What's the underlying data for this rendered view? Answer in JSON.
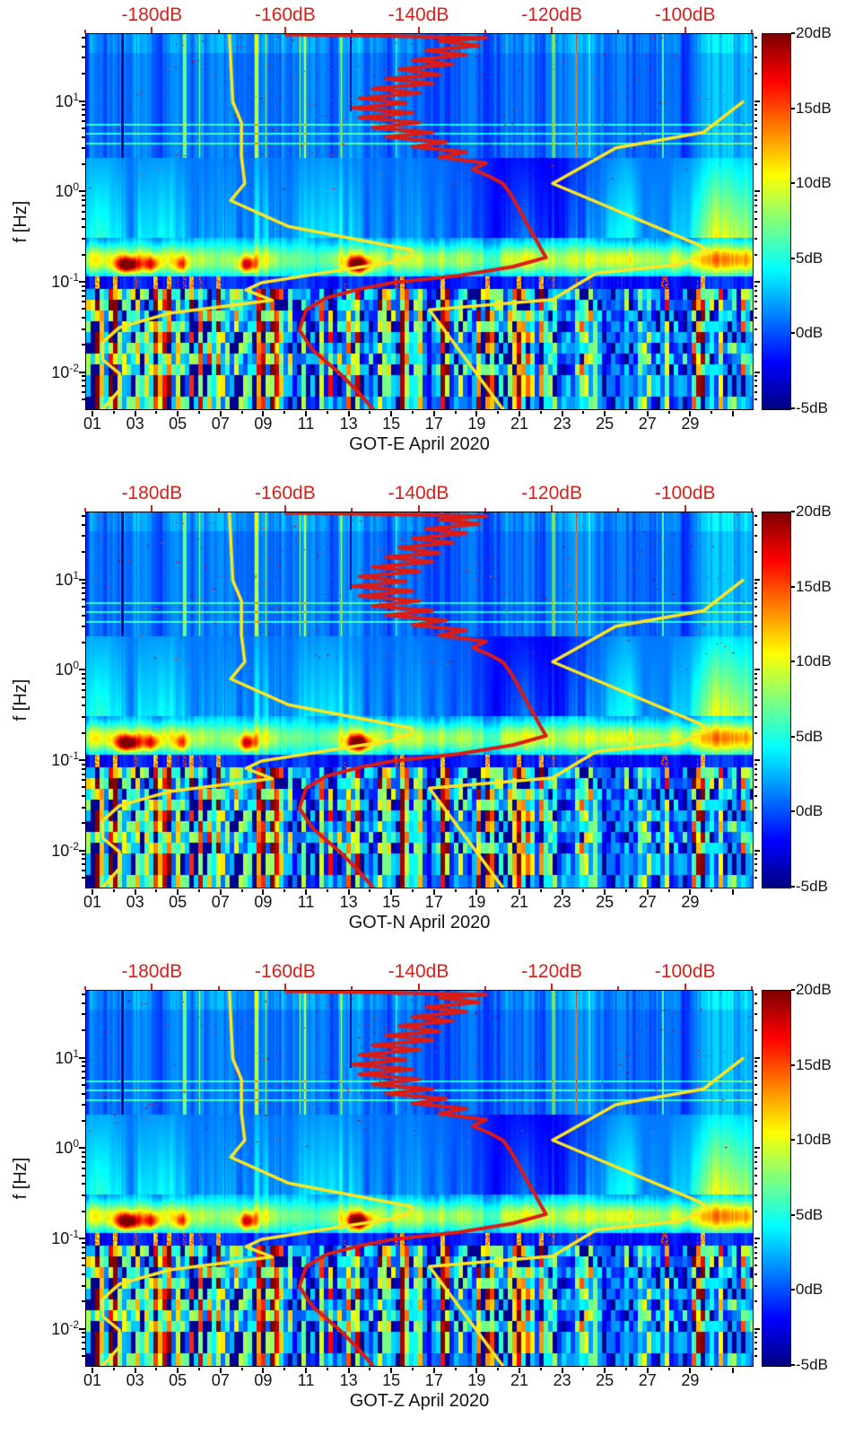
{
  "figure": {
    "background": "#ffffff",
    "accent_red": "#d8201a",
    "curve_yellow": "#ffe51f",
    "curve_red": "#dc1c14",
    "ylabel": "f [Hz]",
    "noise_seed": 7
  },
  "axes": {
    "x_ticks": {
      "labels": [
        "01",
        "03",
        "05",
        "07",
        "09",
        "11",
        "13",
        "15",
        "17",
        "19",
        "21",
        "23",
        "25",
        "27",
        "29"
      ],
      "values": [
        1,
        3,
        5,
        7,
        9,
        11,
        13,
        15,
        17,
        19,
        21,
        23,
        25,
        27,
        29
      ]
    },
    "y_ticks": [
      {
        "base": "10",
        "exp": "1",
        "value_hz": 10
      },
      {
        "base": "10",
        "exp": "0",
        "value_hz": 1
      },
      {
        "base": "10",
        "exp": "-1",
        "value_hz": 0.1
      },
      {
        "base": "10",
        "exp": "-2",
        "value_hz": 0.01
      }
    ],
    "top_ticks": {
      "labels": [
        "-180dB",
        "-160dB",
        "-140dB",
        "-120dB",
        "-100dB"
      ],
      "values": [
        -180,
        -160,
        -140,
        -120,
        -100
      ],
      "range_db": [
        -190,
        -90
      ]
    },
    "colorbar_ticks": {
      "labels": [
        "20dB",
        "15dB",
        "10dB",
        "5dB",
        "0dB",
        "-5dB"
      ],
      "values": [
        20,
        15,
        10,
        5,
        0,
        -5
      ]
    }
  },
  "chart_data": {
    "type": "heatmap",
    "description": "Three stacked spectrogram panels (E, N, Z components of station GOT) for April 2020. Color = PSD deviation in dB (jet colormap, -5 to 20 dB, colorbar at right). Bottom/black axis = day of month, left axis = frequency in Hz (log scale 0.004-56 Hz). Top red axis = absolute PSD level in dB (-190 to -90). Yellow curves = Peterson NLNM and NHNM reference noise models; red curve = station median PSD, both plotted against the top dB axis.",
    "panels": [
      {
        "component": "E",
        "title": "GOT-E April 2020"
      },
      {
        "component": "N",
        "title": "GOT-N April 2020"
      },
      {
        "component": "Z",
        "title": "GOT-Z April 2020"
      }
    ],
    "x_axis": {
      "unit": "day of April 2020",
      "range": [
        1,
        31.9
      ],
      "ticks": [
        1,
        3,
        5,
        7,
        9,
        11,
        13,
        15,
        17,
        19,
        21,
        23,
        25,
        27,
        29
      ]
    },
    "y_axis": {
      "label": "f [Hz]",
      "scale": "log10",
      "range_hz": [
        0.004,
        56.2
      ],
      "ticks_hz": [
        10,
        1,
        0.1,
        0.01
      ]
    },
    "color_axis": {
      "unit": "dB",
      "range": [
        -5,
        20
      ],
      "ticks": [
        20,
        15,
        10,
        5,
        0,
        -5
      ],
      "colormap": "jet"
    },
    "top_axis": {
      "unit": "dB (PSD)",
      "range": [
        -190,
        -90
      ],
      "ticks": [
        -180,
        -160,
        -140,
        -120,
        -100
      ],
      "color": "red"
    },
    "curves": {
      "nlnm_yellow_f_db": [
        [
          55,
          -168.5
        ],
        [
          10,
          -168.0
        ],
        [
          5.9,
          -166.7
        ],
        [
          2.5,
          -166.7
        ],
        [
          1.25,
          -166.2
        ],
        [
          0.81,
          -168.3
        ],
        [
          0.42,
          -159.7
        ],
        [
          0.23,
          -141.1
        ],
        [
          0.2,
          -141.1
        ],
        [
          0.167,
          -144.5
        ],
        [
          0.1,
          -163.7
        ],
        [
          0.083,
          -166.0
        ],
        [
          0.064,
          -162.1
        ],
        [
          0.046,
          -177.5
        ],
        [
          0.032,
          -185.0
        ],
        [
          0.022,
          -187.5
        ],
        [
          0.014,
          -187.5
        ],
        [
          0.0099,
          -185.0
        ],
        [
          0.0065,
          -185.0
        ],
        [
          0.004,
          -187.5
        ]
      ],
      "nhnm_yellow_f_db": [
        [
          10,
          -91.5
        ],
        [
          4.6,
          -97.4
        ],
        [
          3.1,
          -110.5
        ],
        [
          1.25,
          -120.0
        ],
        [
          0.26,
          -98.0
        ],
        [
          0.217,
          -96.5
        ],
        [
          0.159,
          -101.0
        ],
        [
          0.127,
          -113.5
        ],
        [
          0.065,
          -120.0
        ],
        [
          0.05,
          -138.5
        ],
        [
          0.004,
          -127.5
        ]
      ],
      "median_psd_red_f_db": [
        [
          0.004,
          -147
        ],
        [
          0.006,
          -149
        ],
        [
          0.01,
          -152
        ],
        [
          0.018,
          -156
        ],
        [
          0.03,
          -158
        ],
        [
          0.05,
          -157
        ],
        [
          0.068,
          -154
        ],
        [
          0.085,
          -149
        ],
        [
          0.1,
          -144
        ],
        [
          0.12,
          -134
        ],
        [
          0.15,
          -126
        ],
        [
          0.19,
          -121
        ],
        [
          0.24,
          -121.8
        ],
        [
          0.3,
          -122.5
        ],
        [
          0.4,
          -123.5
        ],
        [
          0.55,
          -124.5
        ],
        [
          0.75,
          -125.5
        ],
        [
          1,
          -126.5
        ],
        [
          1.25,
          -127.5
        ],
        [
          1.5,
          -129.5
        ],
        [
          1.8,
          -132
        ],
        [
          2.1,
          -130
        ],
        [
          2.45,
          -137
        ],
        [
          2.8,
          -133
        ],
        [
          3.2,
          -141
        ],
        [
          3.6,
          -136
        ],
        [
          4.1,
          -145
        ],
        [
          4.6,
          -138
        ],
        [
          5.2,
          -147
        ],
        [
          5.9,
          -140
        ],
        [
          6.7,
          -149
        ],
        [
          7.6,
          -141
        ],
        [
          8.6,
          -150
        ],
        [
          9.7,
          -142
        ],
        [
          11,
          -149
        ],
        [
          12.5,
          -140
        ],
        [
          14,
          -147
        ],
        [
          16,
          -138
        ],
        [
          18,
          -145
        ],
        [
          20,
          -137
        ],
        [
          23,
          -143
        ],
        [
          26,
          -135
        ],
        [
          29,
          -141
        ],
        [
          33,
          -133
        ],
        [
          37,
          -139
        ],
        [
          42,
          -131
        ],
        [
          47,
          -137
        ],
        [
          51,
          -130
        ],
        [
          54,
          -147
        ],
        [
          55.5,
          -160
        ]
      ]
    },
    "microseism_bursts": [
      [
        2.6,
        0.55,
        16
      ],
      [
        3.7,
        0.35,
        9
      ],
      [
        5.1,
        0.3,
        7
      ],
      [
        8.2,
        0.4,
        11
      ],
      [
        13.4,
        0.5,
        17
      ]
    ],
    "heatmap_features": [
      "persistent microseism band near 0.1-0.3 Hz (yellow/green) with dark-red bursts around days 2-3, 8 and 13",
      "blocky vertical high/low 'barcode' stripes below ~0.07 Hz (long-period bins), hotter during days 1-9",
      "daily striping and cyan/green plumes between 0.3 and 2 Hz",
      "quieter dark-blue patch around days 19-24 between 0.3 and 2 Hz",
      "thin vertical transient lines and sporadic red specks above 2 Hz, dark dropout line near day 2.3",
      "narrow horizontal cyan lines near 3.5 and 4.5 Hz"
    ]
  }
}
